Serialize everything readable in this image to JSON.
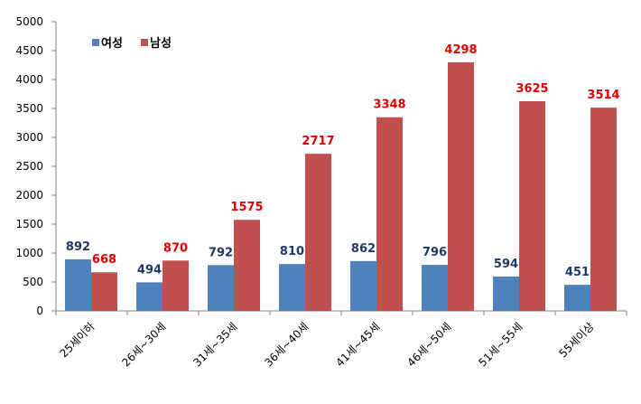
{
  "chart_data": {
    "type": "bar",
    "categories": [
      "25세이하",
      "26세~30세",
      "31세~35세",
      "36세~40세",
      "41세~45세",
      "46세~50세",
      "51세~55세",
      "55세이상"
    ],
    "series": [
      {
        "name": "여성",
        "values": [
          892,
          494,
          792,
          810,
          862,
          796,
          594,
          451
        ],
        "color": "#4F81BD",
        "label_color": "#1F3864"
      },
      {
        "name": "남성",
        "values": [
          668,
          870,
          1575,
          2717,
          3348,
          4298,
          3625,
          3514
        ],
        "color": "#C0504D",
        "label_color": "#E00000"
      }
    ],
    "ylim": [
      0,
      5000
    ],
    "yticks": [
      0,
      500,
      1000,
      1500,
      2000,
      2500,
      3000,
      3500,
      4000,
      4500,
      5000
    ],
    "grid": false,
    "legend_position": "top-left",
    "data_labels": true
  }
}
